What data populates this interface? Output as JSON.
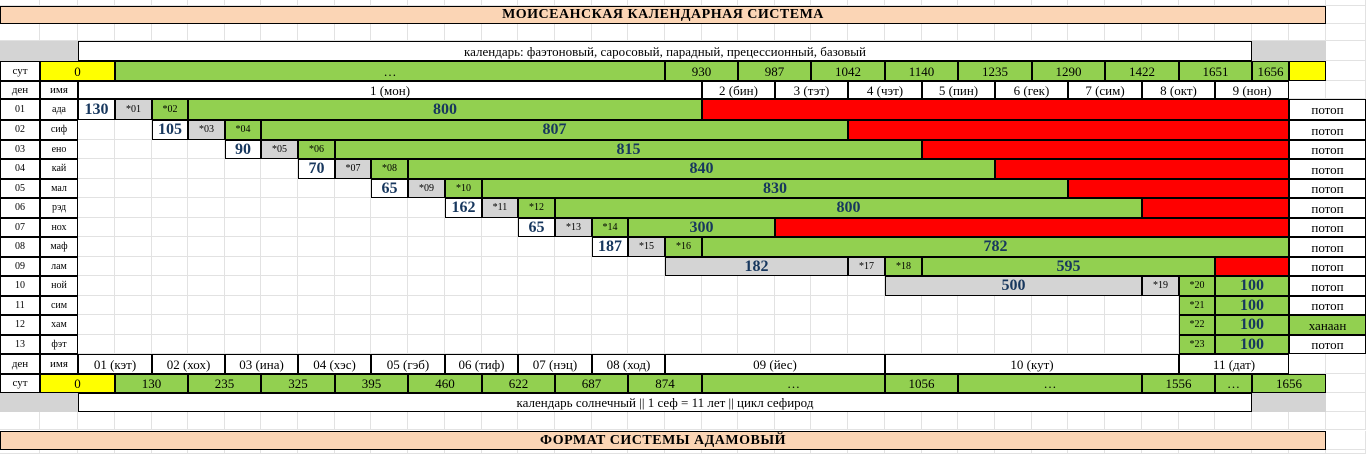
{
  "title_top": "МОИСЕАНСКАЯ КАЛЕНДАРНАЯ СИСТЕМА",
  "title_bottom": "ФОРМАТ СИСТЕМЫ АДАМОВЫЙ",
  "calendar_top_label": "календарь: фаэтоновый, саросовый, парадный, прецессионный, базовый",
  "calendar_bottom_label": "календарь солнечный || 1 сеф = 11 лет || цикл сефирод",
  "label_sut": "сут",
  "label_den": "ден",
  "label_imya": "имя",
  "top_sut": {
    "zero": "0",
    "ellipsis": "…",
    "values": [
      "930",
      "987",
      "1042",
      "1140",
      "1235",
      "1290",
      "1422",
      "1651",
      "1656"
    ]
  },
  "month_headers": [
    "1 (мон)",
    "2 (бин)",
    "3 (тэт)",
    "4 (чэт)",
    "5 (пин)",
    "6 (гек)",
    "7 (сим)",
    "8 (окт)",
    "9 (нон)"
  ],
  "rows": [
    {
      "num": "01",
      "name": "ада",
      "big": "130",
      "star1": "*01",
      "star2": "*02",
      "green": "800",
      "right": "потоп"
    },
    {
      "num": "02",
      "name": "сиф",
      "big": "105",
      "star1": "*03",
      "star2": "*04",
      "green": "807",
      "right": "потоп"
    },
    {
      "num": "03",
      "name": "ено",
      "big": "90",
      "star1": "*05",
      "star2": "*06",
      "green": "815",
      "right": "потоп"
    },
    {
      "num": "04",
      "name": "кай",
      "big": "70",
      "star1": "*07",
      "star2": "*08",
      "green": "840",
      "right": "потоп"
    },
    {
      "num": "05",
      "name": "мал",
      "big": "65",
      "star1": "*09",
      "star2": "*10",
      "green": "830",
      "right": "потоп"
    },
    {
      "num": "06",
      "name": "рэд",
      "big": "162",
      "star1": "*11",
      "star2": "*12",
      "green": "800",
      "right": "потоп"
    },
    {
      "num": "07",
      "name": "нох",
      "big": "65",
      "star1": "*13",
      "star2": "*14",
      "green": "300",
      "right": "потоп"
    },
    {
      "num": "08",
      "name": "маф",
      "big": "187",
      "star1": "*15",
      "star2": "*16",
      "green": "782",
      "right": "потоп"
    },
    {
      "num": "09",
      "name": "лам",
      "big": "182",
      "star1": "*17",
      "star2": "*18",
      "green": "595",
      "right": "потоп"
    },
    {
      "num": "10",
      "name": "ной",
      "big": "500",
      "star1": "*19",
      "star2": "*20",
      "green": "100",
      "right": "потоп"
    },
    {
      "num": "11",
      "name": "сим",
      "star2": "*21",
      "green": "100",
      "right": "потоп"
    },
    {
      "num": "12",
      "name": "хам",
      "star2": "*22",
      "green": "100",
      "right": "ханаан"
    },
    {
      "num": "13",
      "name": "фэт",
      "star2": "*23",
      "green": "100",
      "right": "потоп"
    }
  ],
  "bottom_headers": [
    "01 (кэт)",
    "02 (хох)",
    "03 (ина)",
    "04 (хэс)",
    "05 (гэб)",
    "06 (тиф)",
    "07 (нэц)",
    "08 (ход)",
    "09 (йес)",
    "10 (кут)",
    "11 (дат)"
  ],
  "bottom_sut": {
    "zero": "0",
    "values": [
      "130",
      "235",
      "325",
      "395",
      "460",
      "622",
      "687",
      "874",
      "…",
      "1056",
      "…",
      "1556",
      "…",
      "1656"
    ]
  }
}
